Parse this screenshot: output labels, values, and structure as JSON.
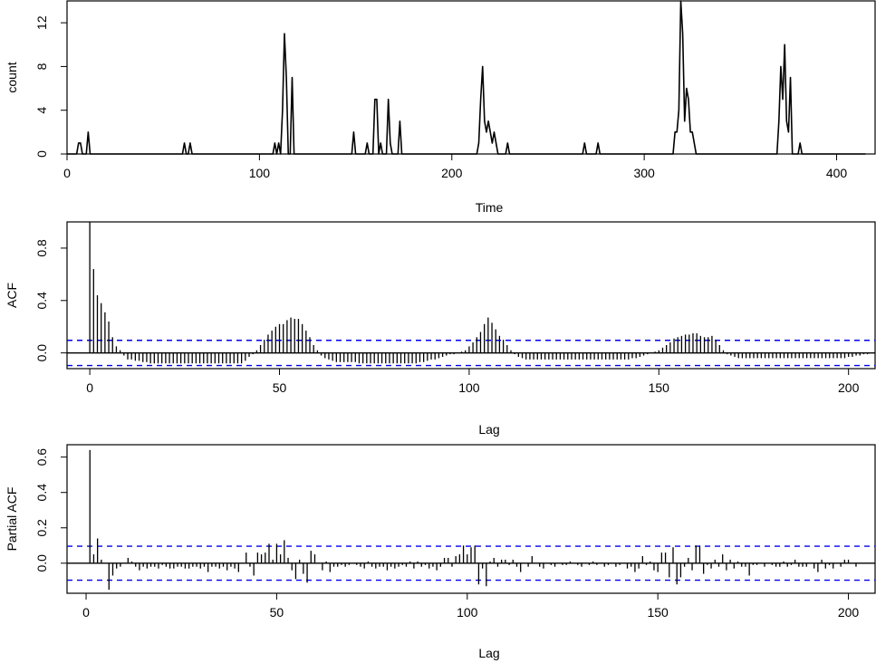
{
  "chart_data": [
    {
      "type": "line",
      "xlabel": "Time",
      "ylabel": "count",
      "xlim": [
        0,
        420
      ],
      "ylim": [
        0,
        14
      ],
      "xticks": [
        0,
        100,
        200,
        300,
        400
      ],
      "yticks": [
        0,
        4,
        8,
        12
      ],
      "series": [
        {
          "color": "#000000",
          "points": [
            [
              0,
              0
            ],
            [
              5,
              0
            ],
            [
              6,
              1
            ],
            [
              7,
              1
            ],
            [
              8,
              0
            ],
            [
              10,
              0
            ],
            [
              11,
              2
            ],
            [
              12,
              0
            ],
            [
              60,
              0
            ],
            [
              61,
              1
            ],
            [
              62,
              0
            ],
            [
              63,
              0
            ],
            [
              64,
              1
            ],
            [
              65,
              0
            ],
            [
              107,
              0
            ],
            [
              108,
              1
            ],
            [
              109,
              0
            ],
            [
              110,
              1
            ],
            [
              111,
              0
            ],
            [
              112,
              4
            ],
            [
              113,
              11
            ],
            [
              114,
              7
            ],
            [
              115,
              0
            ],
            [
              116,
              0
            ],
            [
              117,
              7
            ],
            [
              118,
              0
            ],
            [
              148,
              0
            ],
            [
              149,
              2
            ],
            [
              150,
              0
            ],
            [
              155,
              0
            ],
            [
              156,
              1
            ],
            [
              157,
              0
            ],
            [
              159,
              0
            ],
            [
              160,
              5
            ],
            [
              161,
              5
            ],
            [
              162,
              0
            ],
            [
              163,
              1
            ],
            [
              164,
              0
            ],
            [
              166,
              0
            ],
            [
              167,
              5
            ],
            [
              168,
              1
            ],
            [
              169,
              0
            ],
            [
              172,
              0
            ],
            [
              173,
              3
            ],
            [
              174,
              0
            ],
            [
              213,
              0
            ],
            [
              214,
              1
            ],
            [
              215,
              5
            ],
            [
              216,
              8
            ],
            [
              217,
              3
            ],
            [
              218,
              2
            ],
            [
              219,
              3
            ],
            [
              220,
              2
            ],
            [
              221,
              1
            ],
            [
              222,
              2
            ],
            [
              223,
              1
            ],
            [
              224,
              0
            ],
            [
              228,
              0
            ],
            [
              229,
              1
            ],
            [
              230,
              0
            ],
            [
              268,
              0
            ],
            [
              269,
              1
            ],
            [
              270,
              0
            ],
            [
              275,
              0
            ],
            [
              276,
              1
            ],
            [
              277,
              0
            ],
            [
              315,
              0
            ],
            [
              316,
              2
            ],
            [
              317,
              2
            ],
            [
              318,
              4
            ],
            [
              319,
              14
            ],
            [
              320,
              11
            ],
            [
              321,
              3
            ],
            [
              322,
              6
            ],
            [
              323,
              5
            ],
            [
              324,
              2
            ],
            [
              325,
              2
            ],
            [
              326,
              1
            ],
            [
              327,
              0
            ],
            [
              369,
              0
            ],
            [
              370,
              3
            ],
            [
              371,
              8
            ],
            [
              372,
              5
            ],
            [
              373,
              10
            ],
            [
              374,
              3
            ],
            [
              375,
              2
            ],
            [
              376,
              7
            ],
            [
              377,
              0
            ],
            [
              380,
              0
            ],
            [
              381,
              1
            ],
            [
              382,
              0
            ],
            [
              415,
              0
            ]
          ]
        }
      ]
    },
    {
      "type": "bar",
      "xlabel": "Lag",
      "ylabel": "ACF",
      "xlim": [
        -6,
        207
      ],
      "ylim": [
        -0.12,
        1.0
      ],
      "xticks": [
        0,
        50,
        100,
        150,
        200
      ],
      "yticks": [
        0.0,
        0.4,
        0.8
      ],
      "ytick_labels": [
        "0.0",
        "0.4",
        "0.8"
      ],
      "confidence_band": 0.096,
      "confidence_color": "#0000ee",
      "lags": [
        0,
        200
      ],
      "values": [
        1.0,
        0.64,
        0.44,
        0.38,
        0.31,
        0.24,
        0.12,
        0.05,
        0.02,
        -0.02,
        -0.05,
        -0.05,
        -0.06,
        -0.06,
        -0.07,
        -0.07,
        -0.08,
        -0.08,
        -0.08,
        -0.08,
        -0.08,
        -0.08,
        -0.08,
        -0.08,
        -0.08,
        -0.08,
        -0.08,
        -0.08,
        -0.08,
        -0.08,
        -0.08,
        -0.08,
        -0.08,
        -0.08,
        -0.08,
        -0.08,
        -0.08,
        -0.08,
        -0.08,
        -0.08,
        -0.08,
        -0.06,
        -0.03,
        -0.01,
        0.02,
        0.06,
        0.1,
        0.14,
        0.17,
        0.2,
        0.22,
        0.22,
        0.25,
        0.27,
        0.26,
        0.26,
        0.22,
        0.17,
        0.12,
        0.06,
        0.02,
        -0.02,
        -0.04,
        -0.05,
        -0.06,
        -0.07,
        -0.07,
        -0.07,
        -0.07,
        -0.07,
        -0.07,
        -0.08,
        -0.08,
        -0.08,
        -0.08,
        -0.08,
        -0.08,
        -0.08,
        -0.08,
        -0.08,
        -0.08,
        -0.08,
        -0.08,
        -0.08,
        -0.08,
        -0.08,
        -0.08,
        -0.07,
        -0.07,
        -0.06,
        -0.05,
        -0.05,
        -0.04,
        -0.03,
        -0.02,
        -0.01,
        -0.01,
        0.0,
        0.01,
        0.02,
        0.05,
        0.08,
        0.12,
        0.16,
        0.22,
        0.27,
        0.23,
        0.18,
        0.13,
        0.1,
        0.06,
        0.02,
        -0.01,
        -0.03,
        -0.04,
        -0.05,
        -0.05,
        -0.05,
        -0.05,
        -0.05,
        -0.05,
        -0.05,
        -0.05,
        -0.05,
        -0.05,
        -0.05,
        -0.05,
        -0.05,
        -0.05,
        -0.05,
        -0.05,
        -0.05,
        -0.05,
        -0.05,
        -0.05,
        -0.05,
        -0.05,
        -0.05,
        -0.05,
        -0.05,
        -0.05,
        -0.05,
        -0.05,
        -0.04,
        -0.04,
        -0.03,
        -0.02,
        -0.01,
        0.0,
        0.01,
        0.02,
        0.04,
        0.06,
        0.08,
        0.11,
        0.12,
        0.13,
        0.14,
        0.14,
        0.15,
        0.15,
        0.13,
        0.12,
        0.12,
        0.13,
        0.1,
        0.06,
        0.02,
        -0.01,
        -0.02,
        -0.03,
        -0.04,
        -0.04,
        -0.04,
        -0.04,
        -0.04,
        -0.04,
        -0.04,
        -0.04,
        -0.04,
        -0.04,
        -0.04,
        -0.04,
        -0.04,
        -0.04,
        -0.04,
        -0.04,
        -0.04,
        -0.04,
        -0.04,
        -0.04,
        -0.04,
        -0.04,
        -0.04,
        -0.04,
        -0.04,
        -0.04,
        -0.04,
        -0.04,
        -0.04,
        -0.03,
        -0.03,
        -0.02,
        -0.02,
        -0.01,
        -0.01,
        0.0
      ]
    },
    {
      "type": "bar",
      "xlabel": "Lag",
      "ylabel": "Partial ACF",
      "xlim": [
        -5,
        207
      ],
      "ylim": [
        -0.17,
        0.67
      ],
      "xticks": [
        0,
        50,
        100,
        150,
        200
      ],
      "yticks": [
        0.0,
        0.2,
        0.4,
        0.6
      ],
      "ytick_labels": [
        "0.0",
        "0.2",
        "0.4",
        "0.6"
      ],
      "confidence_band": 0.096,
      "confidence_color": "#0000ee",
      "lags": [
        1,
        200
      ],
      "values": [
        0.64,
        0.05,
        0.14,
        0.02,
        0.0,
        -0.15,
        -0.07,
        -0.03,
        -0.02,
        0.0,
        0.03,
        0.01,
        -0.02,
        -0.04,
        -0.02,
        -0.03,
        -0.02,
        -0.02,
        -0.03,
        -0.01,
        -0.02,
        -0.03,
        -0.03,
        -0.02,
        -0.02,
        -0.03,
        -0.03,
        -0.02,
        -0.02,
        -0.03,
        -0.02,
        -0.05,
        -0.02,
        -0.02,
        -0.03,
        -0.02,
        -0.04,
        -0.02,
        -0.03,
        -0.05,
        0.0,
        0.06,
        -0.02,
        -0.07,
        0.06,
        0.05,
        0.06,
        0.11,
        0.02,
        0.11,
        0.05,
        0.13,
        0.03,
        -0.04,
        -0.09,
        0.02,
        -0.06,
        -0.11,
        0.07,
        0.05,
        0.0,
        -0.04,
        0.01,
        -0.05,
        -0.02,
        -0.02,
        -0.01,
        -0.02,
        -0.01,
        0.0,
        -0.01,
        -0.02,
        -0.03,
        0.01,
        -0.02,
        -0.03,
        -0.02,
        -0.02,
        -0.04,
        -0.02,
        -0.03,
        -0.02,
        -0.01,
        -0.02,
        0.01,
        -0.03,
        0.01,
        -0.02,
        -0.01,
        -0.03,
        -0.02,
        -0.04,
        -0.02,
        0.03,
        0.03,
        -0.02,
        0.04,
        0.05,
        0.1,
        0.05,
        0.09,
        0.1,
        -0.12,
        -0.03,
        -0.13,
        0.01,
        0.03,
        -0.02,
        0.02,
        0.02,
        -0.01,
        0.02,
        -0.02,
        -0.05,
        0.0,
        -0.02,
        0.04,
        0.0,
        -0.02,
        -0.03,
        0.0,
        -0.01,
        -0.02,
        0.0,
        -0.01,
        -0.01,
        0.01,
        0.0,
        -0.01,
        -0.02,
        0.0,
        -0.01,
        0.01,
        -0.01,
        0.0,
        -0.02,
        -0.01,
        0.0,
        -0.02,
        -0.01,
        0.0,
        -0.03,
        -0.02,
        -0.05,
        -0.03,
        0.04,
        -0.01,
        0.01,
        -0.04,
        -0.05,
        0.06,
        0.06,
        -0.08,
        0.09,
        -0.12,
        -0.08,
        -0.02,
        0.03,
        -0.04,
        0.1,
        0.1,
        -0.06,
        -0.01,
        -0.03,
        0.02,
        -0.02,
        0.05,
        -0.04,
        0.02,
        -0.03,
        0.01,
        -0.02,
        -0.02,
        -0.07,
        -0.01,
        -0.01,
        0.0,
        -0.02,
        0.0,
        -0.01,
        -0.02,
        -0.02,
        0.01,
        -0.02,
        -0.01,
        0.02,
        -0.02,
        -0.02,
        -0.02,
        0.0,
        -0.03,
        -0.05,
        0.02,
        -0.03,
        -0.01,
        -0.03,
        0.0,
        -0.02,
        0.02,
        0.02,
        0.0,
        -0.02
      ]
    }
  ]
}
